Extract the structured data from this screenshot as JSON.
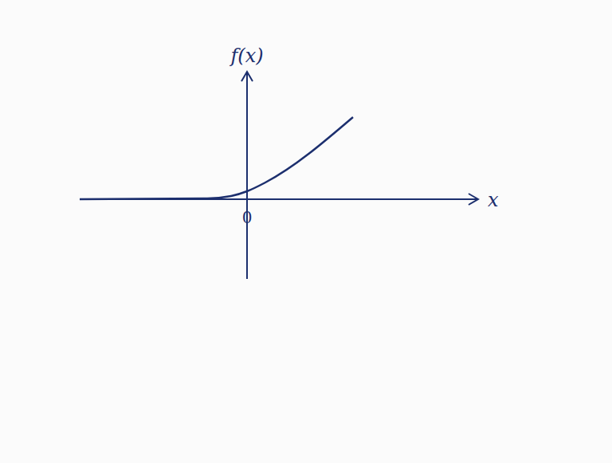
{
  "chart_data": {
    "type": "line",
    "x_label": "x",
    "y_label": "f(x)",
    "x": [
      -4.2,
      -1,
      -0.4,
      0,
      0.46,
      2.66
    ],
    "values": [
      0,
      0.02,
      0.08,
      0.2,
      0.42,
      2.06
    ],
    "color": "#1c2f6e",
    "xlim": [
      -4.2,
      5.8
    ],
    "ylim": [
      -2,
      3.2
    ],
    "xticks": [
      0
    ],
    "tick_labels": "x",
    "grid": false
  }
}
